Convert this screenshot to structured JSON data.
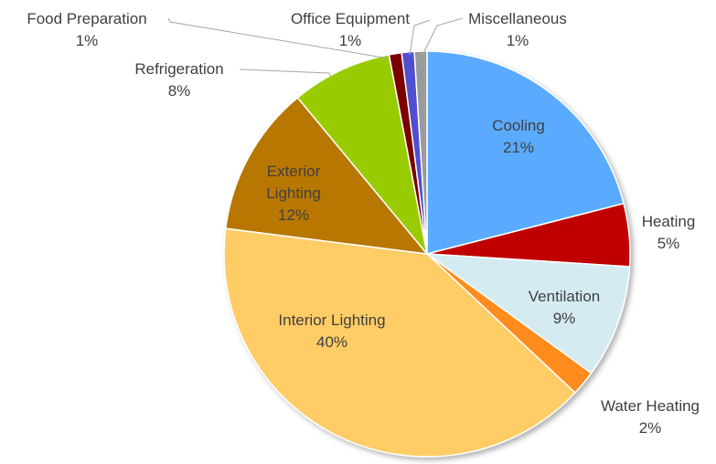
{
  "chart_data": {
    "type": "pie",
    "categories": [
      "Cooling",
      "Heating",
      "Ventilation",
      "Water Heating",
      "Interior Lighting",
      "Exterior Lighting",
      "Refrigeration",
      "Food Preparation",
      "Office Equipment",
      "Miscellaneous"
    ],
    "values": [
      21,
      5,
      9,
      2,
      40,
      12,
      8,
      1,
      1,
      1
    ],
    "value_labels": [
      "21%",
      "5%",
      "9%",
      "2%",
      "40%",
      "12%",
      "8%",
      "1%",
      "1%",
      "1%"
    ],
    "colors": [
      "#5aabff",
      "#c00000",
      "#d4ebf1",
      "#ff8c1a",
      "#ffcc66",
      "#b87700",
      "#99cc00",
      "#7b0000",
      "#4f4fd0",
      "#9a9a9a"
    ]
  }
}
